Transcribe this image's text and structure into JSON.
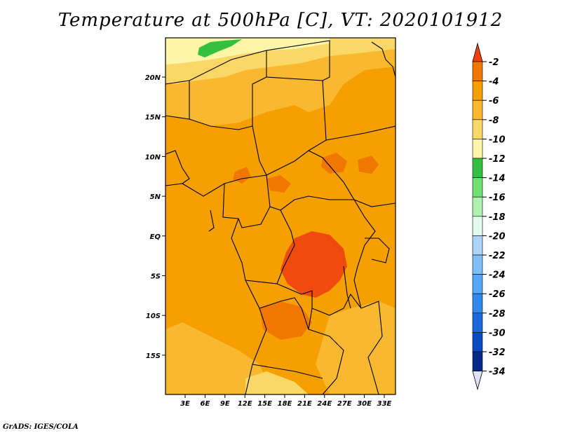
{
  "title": "Temperature at 500hPa [C], VT: 2020101912",
  "footer": "GrADS: IGES/COLA",
  "map": {
    "lat_labels": [
      "20N",
      "15N",
      "10N",
      "5N",
      "EQ",
      "5S",
      "10S",
      "15S"
    ],
    "lon_labels": [
      "3E",
      "6E",
      "9E",
      "12E",
      "15E",
      "18E",
      "21E",
      "24E",
      "27E",
      "30E",
      "33E"
    ]
  },
  "colorbar": {
    "labels": [
      "-2",
      "-4",
      "-6",
      "-8",
      "-10",
      "-12",
      "-14",
      "-16",
      "-18",
      "-20",
      "-22",
      "-24",
      "-26",
      "-28",
      "-30",
      "-32",
      "-34"
    ],
    "colors": [
      "#f04a10",
      "#f07800",
      "#f5a000",
      "#f8b830",
      "#fad868",
      "#fdf5a8",
      "#33c040",
      "#70e070",
      "#b0f0b0",
      "#e2fbf0",
      "#aad4f8",
      "#80c0f8",
      "#55a8f5",
      "#3088ec",
      "#1a68dc",
      "#0a4cc0",
      "#06288a",
      "#000a58"
    ]
  },
  "legend_colors": {
    "top_arrow": "#f04010",
    "bottom_arrow": "#e0e0f8"
  }
}
